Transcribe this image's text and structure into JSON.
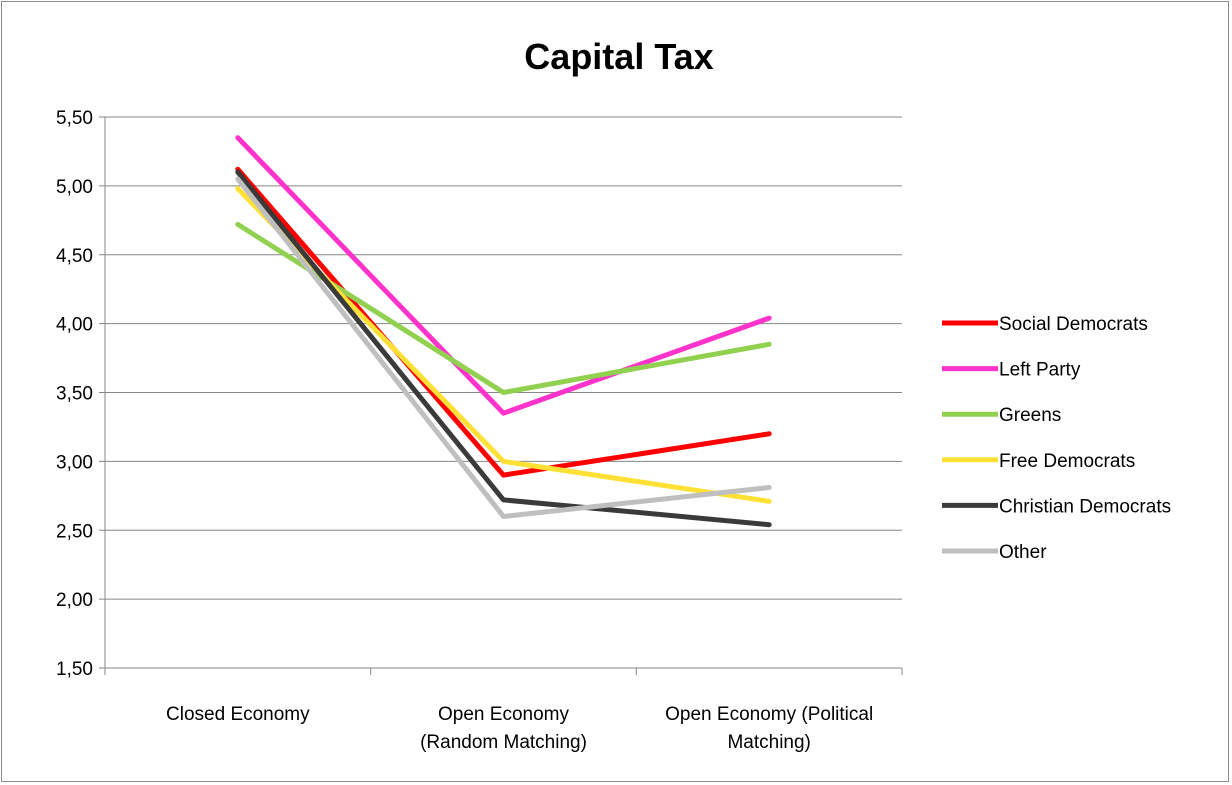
{
  "chart_data": {
    "type": "line",
    "title": "Capital Tax",
    "xlabel": "",
    "ylabel": "",
    "ylim": [
      1.5,
      5.5
    ],
    "yticks": [
      1.5,
      2.0,
      2.5,
      3.0,
      3.5,
      4.0,
      4.5,
      5.0,
      5.5
    ],
    "ytick_labels": [
      "1,50",
      "2,00",
      "2,50",
      "3,00",
      "3,50",
      "4,00",
      "4,50",
      "5,00",
      "5,50"
    ],
    "grid": true,
    "legend_position": "right",
    "categories": [
      [
        "Closed Economy"
      ],
      [
        "Open Economy",
        "(Random Matching)"
      ],
      [
        "Open Economy (Political",
        "Matching)"
      ]
    ],
    "series": [
      {
        "name": "Social Democrats",
        "color": "#ff0000",
        "values": [
          5.12,
          2.9,
          3.2
        ]
      },
      {
        "name": "Left Party",
        "color": "#ff33cc",
        "values": [
          5.35,
          3.35,
          4.04
        ]
      },
      {
        "name": "Greens",
        "color": "#92d050",
        "values": [
          4.72,
          3.5,
          3.85
        ]
      },
      {
        "name": "Free Democrats",
        "color": "#ffe135",
        "values": [
          4.98,
          3.0,
          2.71
        ]
      },
      {
        "name": "Christian Democrats",
        "color": "#3a3a3a",
        "values": [
          5.1,
          2.72,
          2.54
        ]
      },
      {
        "name": "Other",
        "color": "#bfbfbf",
        "values": [
          5.05,
          2.6,
          2.81
        ]
      }
    ]
  }
}
